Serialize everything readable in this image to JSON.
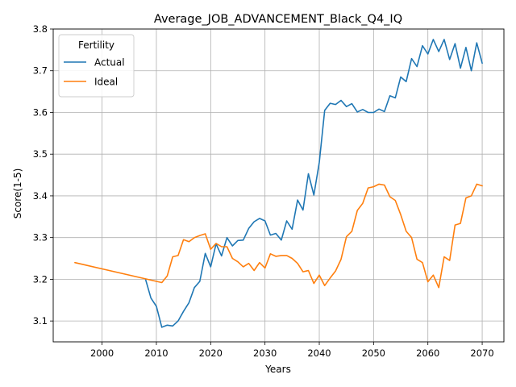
{
  "chart_data": {
    "type": "line",
    "title": "Average_JOB_ADVANCEMENT_Black_Q4_IQ",
    "xlabel": "Years",
    "ylabel": "Score(1-5)",
    "xlim": [
      1991,
      2074
    ],
    "ylim": [
      3.05,
      3.8
    ],
    "xticks": [
      2000,
      2010,
      2020,
      2030,
      2040,
      2050,
      2060,
      2070
    ],
    "yticks": [
      3.1,
      3.2,
      3.3,
      3.4,
      3.5,
      3.6,
      3.7,
      3.8
    ],
    "xtick_labels": [
      "2000",
      "2010",
      "2020",
      "2030",
      "2040",
      "2050",
      "2060",
      "2070"
    ],
    "ytick_labels": [
      "3.1",
      "3.2",
      "3.3",
      "3.4",
      "3.5",
      "3.6",
      "3.7",
      "3.8"
    ],
    "grid": true,
    "legend": {
      "title": "Fertility",
      "position": "upper-left"
    },
    "series": [
      {
        "name": "Actual",
        "color": "#1f77b4",
        "x": [
          2008,
          2009,
          2010,
          2011,
          2012,
          2013,
          2014,
          2015,
          2016,
          2017,
          2018,
          2019,
          2020,
          2021,
          2022,
          2023,
          2024,
          2025,
          2026,
          2027,
          2028,
          2029,
          2030,
          2031,
          2032,
          2033,
          2034,
          2035,
          2036,
          2037,
          2038,
          2039,
          2040,
          2041,
          2042,
          2043,
          2044,
          2045,
          2046,
          2047,
          2048,
          2049,
          2050,
          2051,
          2052,
          2053,
          2054,
          2055,
          2056,
          2057,
          2058,
          2059,
          2060,
          2061,
          2062,
          2063,
          2064,
          2065,
          2066,
          2067,
          2068,
          2069,
          2070
        ],
        "y": [
          3.2,
          3.155,
          3.135,
          3.085,
          3.09,
          3.088,
          3.1,
          3.123,
          3.144,
          3.18,
          3.195,
          3.262,
          3.23,
          3.285,
          3.256,
          3.3,
          3.28,
          3.293,
          3.294,
          3.322,
          3.338,
          3.346,
          3.34,
          3.306,
          3.31,
          3.294,
          3.34,
          3.32,
          3.39,
          3.366,
          3.453,
          3.402,
          3.48,
          3.605,
          3.622,
          3.619,
          3.629,
          3.614,
          3.621,
          3.601,
          3.607,
          3.6,
          3.6,
          3.608,
          3.602,
          3.64,
          3.635,
          3.685,
          3.674,
          3.729,
          3.71,
          3.76,
          3.74,
          3.775,
          3.746,
          3.775,
          3.727,
          3.765,
          3.706,
          3.756,
          3.7,
          3.767,
          3.718
        ]
      },
      {
        "name": "Ideal",
        "color": "#ff7f0e",
        "x": [
          1995,
          2011,
          2012,
          2013,
          2014,
          2015,
          2016,
          2017,
          2018,
          2019,
          2020,
          2021,
          2022,
          2023,
          2024,
          2025,
          2026,
          2027,
          2028,
          2029,
          2030,
          2031,
          2032,
          2033,
          2034,
          2035,
          2036,
          2037,
          2038,
          2039,
          2040,
          2041,
          2042,
          2043,
          2044,
          2045,
          2046,
          2047,
          2048,
          2049,
          2050,
          2051,
          2052,
          2053,
          2054,
          2055,
          2056,
          2057,
          2058,
          2059,
          2060,
          2061,
          2062,
          2063,
          2064,
          2065,
          2066,
          2067,
          2068,
          2069,
          2070
        ],
        "y": [
          3.24,
          3.192,
          3.208,
          3.254,
          3.257,
          3.295,
          3.29,
          3.3,
          3.305,
          3.309,
          3.272,
          3.286,
          3.278,
          3.278,
          3.25,
          3.242,
          3.23,
          3.238,
          3.221,
          3.24,
          3.227,
          3.261,
          3.255,
          3.257,
          3.257,
          3.25,
          3.238,
          3.218,
          3.221,
          3.19,
          3.21,
          3.185,
          3.203,
          3.22,
          3.248,
          3.302,
          3.315,
          3.365,
          3.382,
          3.419,
          3.422,
          3.428,
          3.426,
          3.398,
          3.389,
          3.355,
          3.315,
          3.3,
          3.248,
          3.24,
          3.194,
          3.21,
          3.18,
          3.254,
          3.245,
          3.33,
          3.334,
          3.395,
          3.4,
          3.428,
          3.424
        ]
      }
    ]
  }
}
